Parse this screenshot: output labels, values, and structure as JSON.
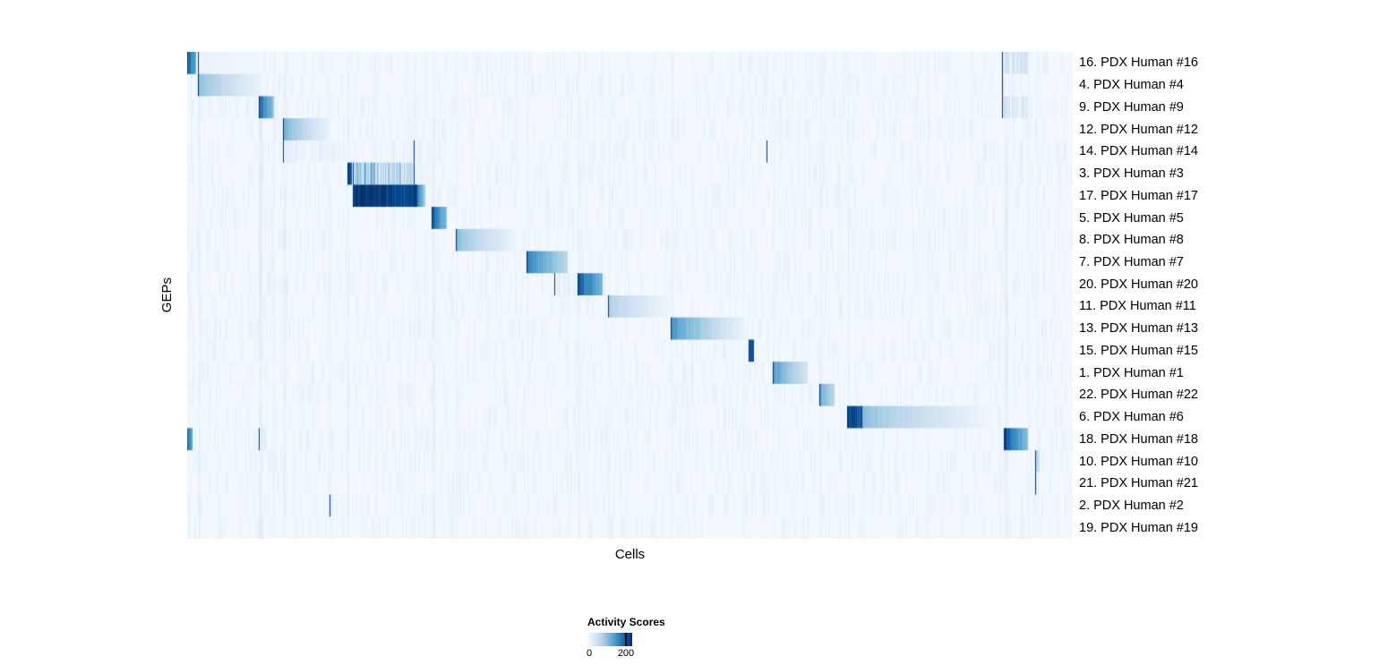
{
  "chart_data": {
    "type": "heatmap",
    "title": "",
    "xlabel": "Cells",
    "ylabel": "GEPs",
    "colormap": "Blues",
    "colormap_stops": [
      [
        0.0,
        "#f7fbff"
      ],
      [
        0.13,
        "#deebf7"
      ],
      [
        0.26,
        "#c6dbef"
      ],
      [
        0.39,
        "#9ecae1"
      ],
      [
        0.52,
        "#6baed6"
      ],
      [
        0.65,
        "#4292c6"
      ],
      [
        0.78,
        "#2171b5"
      ],
      [
        0.9,
        "#08519c"
      ],
      [
        1.0,
        "#08306b"
      ]
    ],
    "value_range": [
      0,
      240
    ],
    "background_value": 0.02,
    "noise_amplitude": 0.06,
    "legend": {
      "title": "Activity Scores",
      "min_label": "0",
      "tick_label": "200",
      "tick_value": 200,
      "tick_position": 0.86
    },
    "rows": [
      {
        "label": "16. PDX Human #16",
        "blocks": [
          {
            "x0": 0.0,
            "x1": 0.01,
            "v0": 0.9,
            "v1": 0.5
          },
          {
            "x0": 0.013,
            "x1": 0.084,
            "v0": 0.08,
            "v1": 0.03
          },
          {
            "x0": 0.921,
            "x1": 0.949,
            "v0": 0.28,
            "v1": 0.22,
            "striped": true
          }
        ]
      },
      {
        "label": "4. PDX Human #4",
        "blocks": [
          {
            "x0": 0.013,
            "x1": 0.084,
            "v0": 0.45,
            "v1": 0.06
          },
          {
            "x0": 0.921,
            "x1": 0.949,
            "v0": 0.1,
            "v1": 0.08,
            "striped": true
          }
        ]
      },
      {
        "label": "9. PDX Human #9",
        "blocks": [
          {
            "x0": 0.081,
            "x1": 0.098,
            "v0": 0.85,
            "v1": 0.4
          },
          {
            "x0": 0.921,
            "x1": 0.949,
            "v0": 0.22,
            "v1": 0.18,
            "striped": true
          }
        ]
      },
      {
        "label": "12. PDX Human #12",
        "blocks": [
          {
            "x0": 0.109,
            "x1": 0.16,
            "v0": 0.5,
            "v1": 0.07
          }
        ]
      },
      {
        "label": "14. PDX Human #14",
        "blocks": [
          {
            "x0": 0.109,
            "x1": 0.186,
            "v0": 0.14,
            "v1": 0.08,
            "striped": true
          },
          {
            "x0": 0.256,
            "x1": 0.277,
            "v0": 0.1,
            "v1": 0.06,
            "striped": true
          },
          {
            "x0": 0.655,
            "x1": 0.675,
            "v0": 0.1,
            "v1": 0.07,
            "striped": true
          }
        ]
      },
      {
        "label": "3. PDX Human #3",
        "blocks": [
          {
            "x0": 0.181,
            "x1": 0.186,
            "v0": 0.95,
            "v1": 0.88
          },
          {
            "x0": 0.188,
            "x1": 0.256,
            "v0": 0.62,
            "v1": 0.4,
            "striped": true
          },
          {
            "x0": 0.256,
            "x1": 0.277,
            "v0": 0.14,
            "v1": 0.07,
            "striped": true
          }
        ]
      },
      {
        "label": "17. PDX Human #17",
        "blocks": [
          {
            "x0": 0.188,
            "x1": 0.258,
            "v0": 0.98,
            "v1": 0.94
          },
          {
            "x0": 0.258,
            "x1": 0.268,
            "v0": 0.9,
            "v1": 0.35
          }
        ]
      },
      {
        "label": "5. PDX Human #5",
        "blocks": [
          {
            "x0": 0.277,
            "x1": 0.293,
            "v0": 0.85,
            "v1": 0.42
          }
        ]
      },
      {
        "label": "8. PDX Human #8",
        "blocks": [
          {
            "x0": 0.304,
            "x1": 0.372,
            "v0": 0.45,
            "v1": 0.05
          }
        ]
      },
      {
        "label": "7. PDX Human #7",
        "blocks": [
          {
            "x0": 0.384,
            "x1": 0.429,
            "v0": 0.75,
            "v1": 0.28
          }
        ]
      },
      {
        "label": "20. PDX Human #20",
        "blocks": [
          {
            "x0": 0.415,
            "x1": 0.441,
            "v0": 0.13,
            "v1": 0.1,
            "striped": true
          },
          {
            "x0": 0.441,
            "x1": 0.469,
            "v0": 0.88,
            "v1": 0.48
          }
        ]
      },
      {
        "label": "11. PDX Human #11",
        "blocks": [
          {
            "x0": 0.476,
            "x1": 0.544,
            "v0": 0.35,
            "v1": 0.04
          }
        ]
      },
      {
        "label": "13. PDX Human #13",
        "blocks": [
          {
            "x0": 0.547,
            "x1": 0.628,
            "v0": 0.65,
            "v1": 0.07
          }
        ]
      },
      {
        "label": "15. PDX Human #15",
        "blocks": [
          {
            "x0": 0.634,
            "x1": 0.64,
            "v0": 0.92,
            "v1": 0.85
          }
        ]
      },
      {
        "label": "1. PDX Human #1",
        "blocks": [
          {
            "x0": 0.662,
            "x1": 0.7,
            "v0": 0.62,
            "v1": 0.18
          }
        ]
      },
      {
        "label": "22. PDX Human #22",
        "blocks": [
          {
            "x0": 0.714,
            "x1": 0.731,
            "v0": 0.55,
            "v1": 0.28
          }
        ]
      },
      {
        "label": "6. PDX Human #6",
        "blocks": [
          {
            "x0": 0.746,
            "x1": 0.762,
            "v0": 0.95,
            "v1": 0.85
          },
          {
            "x0": 0.762,
            "x1": 0.911,
            "v0": 0.45,
            "v1": 0.03
          }
        ]
      },
      {
        "label": "18. PDX Human #18",
        "blocks": [
          {
            "x0": 0.0,
            "x1": 0.006,
            "v0": 0.75,
            "v1": 0.55
          },
          {
            "x0": 0.081,
            "x1": 0.09,
            "v0": 0.18,
            "v1": 0.12,
            "striped": true
          },
          {
            "x0": 0.923,
            "x1": 0.949,
            "v0": 0.92,
            "v1": 0.42
          }
        ]
      },
      {
        "label": "10. PDX Human #10",
        "blocks": [
          {
            "x0": 0.958,
            "x1": 0.962,
            "v0": 0.35,
            "v1": 0.22
          }
        ]
      },
      {
        "label": "21. PDX Human #21",
        "blocks": [
          {
            "x0": 0.958,
            "x1": 0.961,
            "v0": 0.1,
            "v1": 0.08
          }
        ]
      },
      {
        "label": "2. PDX Human #2",
        "blocks": [
          {
            "x0": 0.161,
            "x1": 0.164,
            "v0": 0.12,
            "v1": 0.09
          }
        ]
      },
      {
        "label": "19. PDX Human #19",
        "blocks": []
      }
    ],
    "column_stripes": [
      {
        "x": 0.013,
        "w": 0.002,
        "v": 0.09
      },
      {
        "x": 0.081,
        "w": 0.004,
        "v": 0.11
      },
      {
        "x": 0.097,
        "w": 0.002,
        "v": 0.07
      },
      {
        "x": 0.109,
        "w": 0.003,
        "v": 0.09
      },
      {
        "x": 0.16,
        "w": 0.002,
        "v": 0.06
      },
      {
        "x": 0.181,
        "w": 0.002,
        "v": 0.08
      },
      {
        "x": 0.213,
        "w": 0.002,
        "v": 0.05
      },
      {
        "x": 0.256,
        "w": 0.002,
        "v": 0.06
      },
      {
        "x": 0.277,
        "w": 0.003,
        "v": 0.08
      },
      {
        "x": 0.304,
        "w": 0.002,
        "v": 0.06
      },
      {
        "x": 0.37,
        "w": 0.002,
        "v": 0.05
      },
      {
        "x": 0.384,
        "w": 0.002,
        "v": 0.06
      },
      {
        "x": 0.429,
        "w": 0.002,
        "v": 0.05
      },
      {
        "x": 0.441,
        "w": 0.003,
        "v": 0.07
      },
      {
        "x": 0.476,
        "w": 0.002,
        "v": 0.06
      },
      {
        "x": 0.547,
        "w": 0.002,
        "v": 0.06
      },
      {
        "x": 0.628,
        "w": 0.002,
        "v": 0.05
      },
      {
        "x": 0.662,
        "w": 0.002,
        "v": 0.05
      },
      {
        "x": 0.714,
        "w": 0.003,
        "v": 0.06
      },
      {
        "x": 0.746,
        "w": 0.002,
        "v": 0.07
      },
      {
        "x": 0.836,
        "w": 0.002,
        "v": 0.05
      },
      {
        "x": 0.923,
        "w": 0.004,
        "v": 0.09
      },
      {
        "x": 0.949,
        "w": 0.002,
        "v": 0.06
      },
      {
        "x": 0.959,
        "w": 0.002,
        "v": 0.05
      }
    ]
  }
}
